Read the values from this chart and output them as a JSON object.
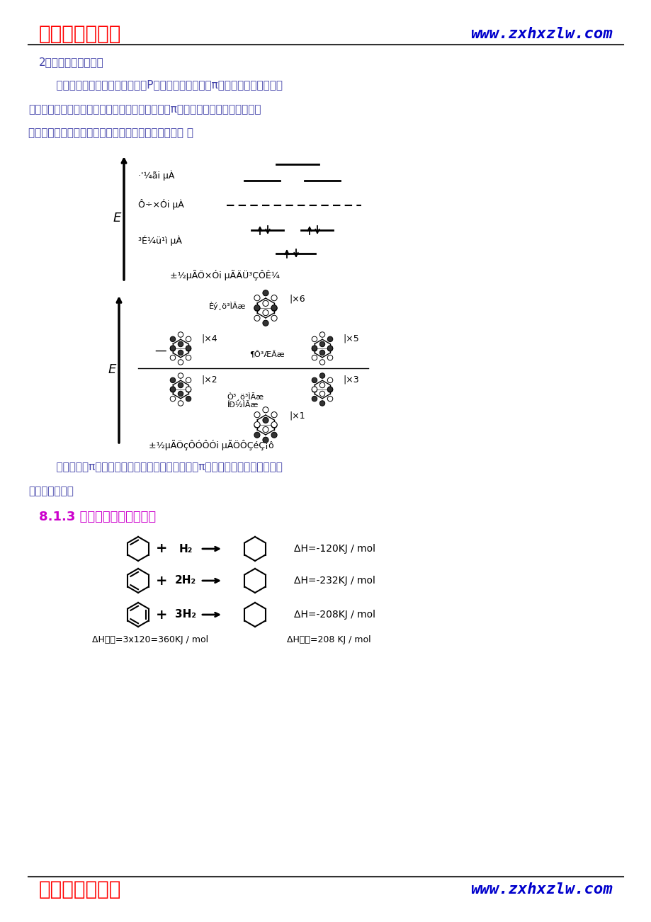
{
  "title_left": "中学化学资料网",
  "title_right": "www.zxhxzlw.com",
  "title_color_left": "#FF0000",
  "title_color_right": "#0000CC",
  "text_color": "#4444AA",
  "black": "#000000",
  "bg_color": "#FFFFFF",
  "section2_color": "#CC00CC",
  "para1": "    分子轨道理论认为，分子中六个P轨道线形组合成六个π分子轨道，其中三个成",
  "para2": "键规定，三个反键轨道。在基态时，苯分子的六个π电子成对填入三个成键轨道，",
  "para3": "其能量比原子轨道低，所以苯分子稳定，体系能量较低 。",
  "para_bottom1": "    苯分子的大π键是三个成键轨道叠加的结果，由于π电子都是离域的，所以碳碳",
  "para_bottom2": "键长完全相同。",
  "dh_texts": [
    "ΔH=-120KJ / mol",
    "ΔH=-232KJ / mol",
    "ΔH=-208KJ / mol"
  ],
  "reagents": [
    "H₂",
    "2H₂",
    "3H₂"
  ],
  "caption_left": "ΔH估计=3x120=360KJ / mol",
  "caption_right": "ΔH实验=208 KJ / mol"
}
